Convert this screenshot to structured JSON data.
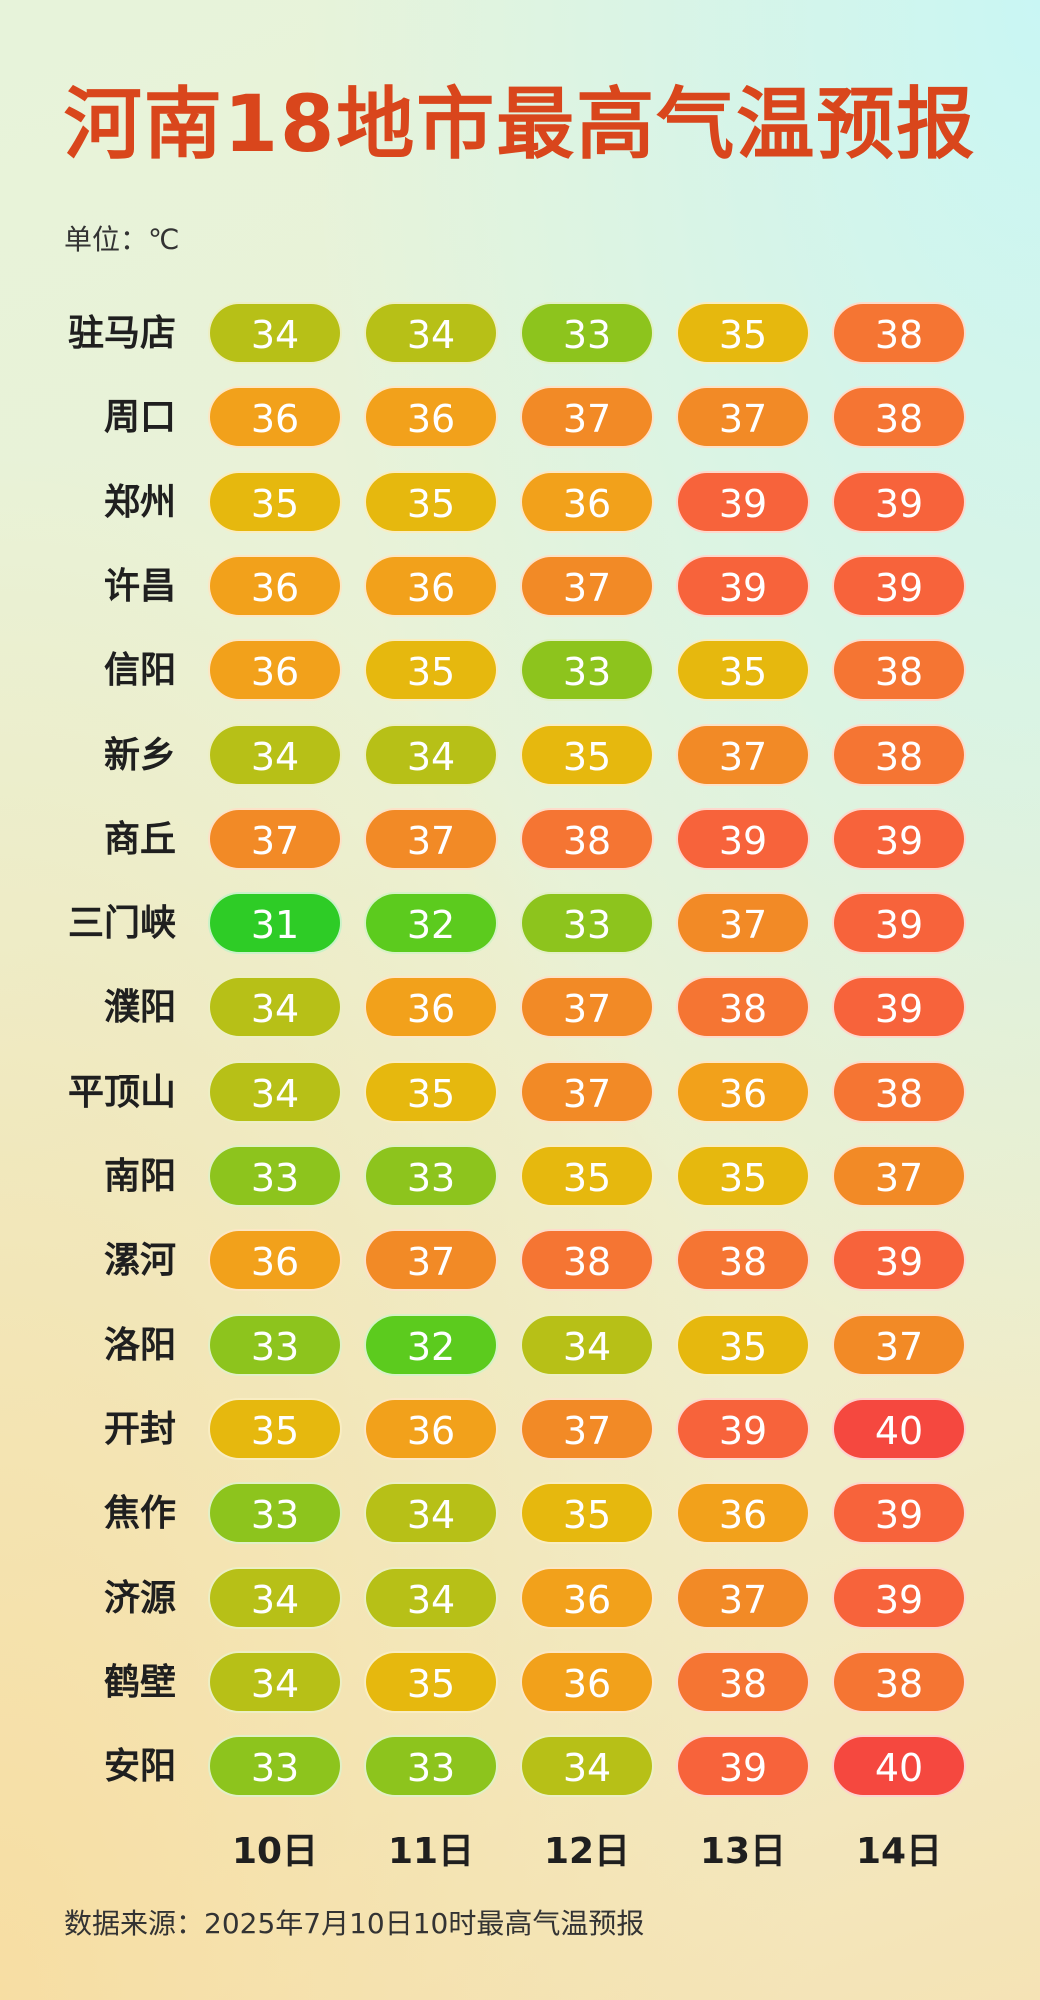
{
  "title": "河南18地市最高气温预报",
  "unit_label": "单位：℃",
  "source": "数据来源：2025年7月10日10时最高气温预报",
  "colors": {
    "title": "#d9461c",
    "t31": "#2ecc26",
    "t32": "#5ccb1e",
    "t33": "#8dc41d",
    "t34": "#b7c017",
    "t35": "#e6b80e",
    "t36": "#f2a11b",
    "t37": "#f28a26",
    "t38": "#f57533",
    "t39": "#f7633b",
    "t40": "#f5483f"
  },
  "chart_data": {
    "type": "table",
    "title": "河南18地市最高气温预报",
    "unit": "单位：℃",
    "days": [
      "10日",
      "11日",
      "12日",
      "13日",
      "14日"
    ],
    "rows": [
      {
        "city": "驻马店",
        "values": [
          34,
          34,
          33,
          35,
          38
        ]
      },
      {
        "city": "周口",
        "values": [
          36,
          36,
          37,
          37,
          38
        ]
      },
      {
        "city": "郑州",
        "values": [
          35,
          35,
          36,
          39,
          39
        ]
      },
      {
        "city": "许昌",
        "values": [
          36,
          36,
          37,
          39,
          39
        ]
      },
      {
        "city": "信阳",
        "values": [
          36,
          35,
          33,
          35,
          38
        ]
      },
      {
        "city": "新乡",
        "values": [
          34,
          34,
          35,
          37,
          38
        ]
      },
      {
        "city": "商丘",
        "values": [
          37,
          37,
          38,
          39,
          39
        ]
      },
      {
        "city": "三门峡",
        "values": [
          31,
          32,
          33,
          37,
          39
        ]
      },
      {
        "city": "濮阳",
        "values": [
          34,
          36,
          37,
          38,
          39
        ]
      },
      {
        "city": "平顶山",
        "values": [
          34,
          35,
          37,
          36,
          38
        ]
      },
      {
        "city": "南阳",
        "values": [
          33,
          33,
          35,
          35,
          37
        ]
      },
      {
        "city": "漯河",
        "values": [
          36,
          37,
          38,
          38,
          39
        ]
      },
      {
        "city": "洛阳",
        "values": [
          33,
          32,
          34,
          35,
          37
        ]
      },
      {
        "city": "开封",
        "values": [
          35,
          36,
          37,
          39,
          40
        ]
      },
      {
        "city": "焦作",
        "values": [
          33,
          34,
          35,
          36,
          39
        ]
      },
      {
        "city": "济源",
        "values": [
          34,
          34,
          36,
          37,
          39
        ]
      },
      {
        "city": "鹤壁",
        "values": [
          34,
          35,
          36,
          38,
          38
        ]
      },
      {
        "city": "安阳",
        "values": [
          33,
          33,
          34,
          39,
          40
        ]
      }
    ],
    "source": "数据来源：2025年7月10日10时最高气温预报"
  }
}
